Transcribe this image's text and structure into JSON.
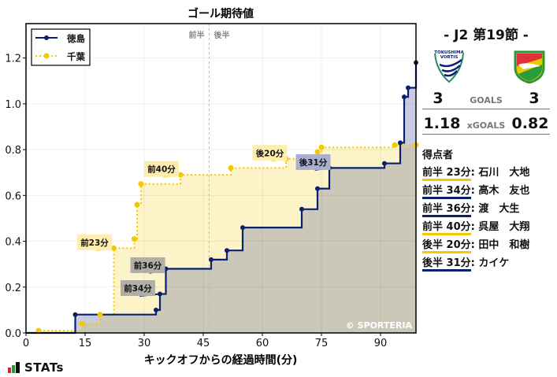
{
  "chart_data": {
    "type": "line",
    "subtype": "step",
    "title": "ゴール期待値",
    "xlabel": "キックオフからの経過時間(分)",
    "ylabel": "",
    "xlim": [
      0,
      99
    ],
    "ylim": [
      0,
      1.35
    ],
    "xticks": [
      0,
      15,
      30,
      45,
      60,
      75,
      90
    ],
    "yticks": [
      0.0,
      0.2,
      0.4,
      0.6,
      0.8,
      1.0,
      1.2
    ],
    "ytick_labels": [
      "0.0",
      "0.2",
      "0.4",
      "0.6",
      "0.8",
      "1.0",
      "1.2"
    ],
    "grid": true,
    "half_divider": {
      "x": 46.5,
      "left_label": "前半",
      "right_label": "後半"
    },
    "legend": {
      "position": "upper-left",
      "entries": [
        "徳島",
        "千葉"
      ]
    },
    "watermark": "© SPORTERIA",
    "series": [
      {
        "name": "徳島",
        "color": "#0a1f6e",
        "style": "solid",
        "fill": "#c9cce0",
        "points": [
          [
            0,
            0
          ],
          [
            12.5,
            0.08
          ],
          [
            33,
            0.1
          ],
          [
            34,
            0.17
          ],
          [
            35.5,
            0.28
          ],
          [
            47,
            0.32
          ],
          [
            51,
            0.36
          ],
          [
            55,
            0.46
          ],
          [
            70,
            0.54
          ],
          [
            74,
            0.63
          ],
          [
            77,
            0.72
          ],
          [
            91,
            0.74
          ],
          [
            95,
            0.83
          ],
          [
            96,
            1.03
          ],
          [
            97,
            1.07
          ],
          [
            99,
            1.18
          ]
        ]
      },
      {
        "name": "千葉",
        "color": "#f5c800",
        "style": "dotted",
        "fill": "#fdf3c8",
        "points": [
          [
            0,
            0
          ],
          [
            3.2,
            0.01
          ],
          [
            14.2,
            0.04
          ],
          [
            18.8,
            0.08
          ],
          [
            22.3,
            0.37
          ],
          [
            27.5,
            0.41
          ],
          [
            28.2,
            0.56
          ],
          [
            29.2,
            0.65
          ],
          [
            39.2,
            0.69
          ],
          [
            52,
            0.72
          ],
          [
            66,
            0.76
          ],
          [
            74,
            0.79
          ],
          [
            75,
            0.81
          ],
          [
            93.6,
            0.82
          ],
          [
            99,
            0.82
          ]
        ]
      }
    ],
    "annotations": [
      {
        "label": "前23分",
        "team": "千葉",
        "x": 22.3,
        "y": 0.37,
        "box_x": 13,
        "box_y": 0.43
      },
      {
        "label": "前34分",
        "team": "徳島",
        "x": 34,
        "y": 0.17,
        "box_x": 24,
        "box_y": 0.23
      },
      {
        "label": "前36分",
        "team": "徳島",
        "x": 35.5,
        "y": 0.28,
        "box_x": 26.5,
        "box_y": 0.33
      },
      {
        "label": "前40分",
        "team": "千葉",
        "x": 39.2,
        "y": 0.69,
        "box_x": 30,
        "box_y": 0.75
      },
      {
        "label": "後20分",
        "team": "千葉",
        "x": 66,
        "y": 0.76,
        "box_x": 57.5,
        "box_y": 0.82
      },
      {
        "label": "後31分",
        "team": "徳島",
        "x": 77,
        "y": 0.72,
        "box_x": 68.5,
        "box_y": 0.78
      }
    ]
  },
  "match": {
    "matchday": "- J2 第19節 -",
    "home": {
      "name": "徳島",
      "logo": "tokushima-vortis-logo",
      "goals": "3",
      "xg": "1.18"
    },
    "away": {
      "name": "千葉",
      "logo": "jef-chiba-logo",
      "goals": "3",
      "xg": "0.82"
    },
    "goals_label": "GOALS",
    "xg_label": "xGOALS"
  },
  "scorers": {
    "title": "得点者",
    "items": [
      {
        "time": "前半 23分",
        "name": ": 石川　大地",
        "team": "千葉",
        "color": "#f5c800"
      },
      {
        "time": "前半 34分",
        "name": ": 高木　友也",
        "team": "徳島",
        "color": "#0a1f6e"
      },
      {
        "time": "前半 36分",
        "name": ": 渡　大生",
        "team": "徳島",
        "color": "#0a1f6e"
      },
      {
        "time": "前半 40分",
        "name": ": 呉屋　大翔",
        "team": "千葉",
        "color": "#f5c800"
      },
      {
        "time": "後半 20分",
        "name": ": 田中　和樹",
        "team": "千葉",
        "color": "#f5c800"
      },
      {
        "time": "後半 31分",
        "name": ": カイケ",
        "team": "徳島",
        "color": "#0a1f6e"
      }
    ]
  },
  "brand": {
    "label": "STATs"
  }
}
